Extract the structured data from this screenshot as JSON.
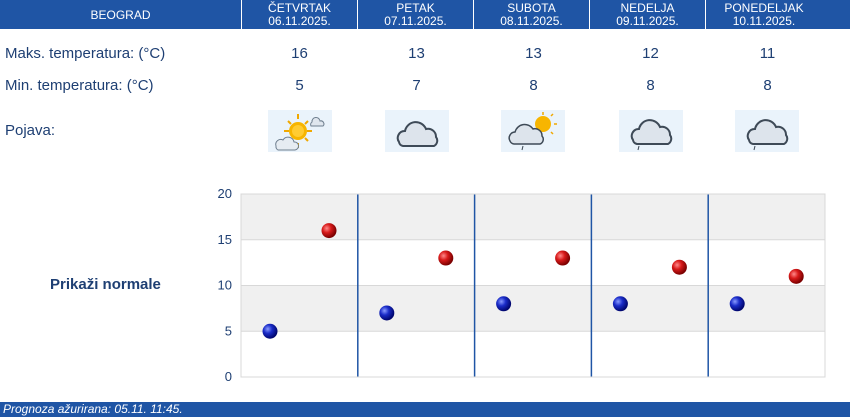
{
  "header": {
    "city": "BEOGRAD",
    "days": [
      {
        "name": "ČETVRTAK",
        "date": "06.11.2025."
      },
      {
        "name": "PETAK",
        "date": "07.11.2025."
      },
      {
        "name": "SUBOTA",
        "date": "08.11.2025."
      },
      {
        "name": "NEDELJA",
        "date": "09.11.2025."
      },
      {
        "name": "PONEDELJAK",
        "date": "10.11.2025."
      }
    ]
  },
  "rows": {
    "max_label": "Maks. temperatura: (°C)",
    "max_values": [
      "16",
      "13",
      "13",
      "12",
      "11"
    ],
    "min_label": "Min. temperatura: (°C)",
    "min_values": [
      "5",
      "7",
      "8",
      "8",
      "8"
    ],
    "weather_label": "Pojava:",
    "weather_icons": [
      "partly-sunny-icon",
      "cloud-icon",
      "cloud-sun-drizzle-icon",
      "cloud-drizzle-icon",
      "cloud-drizzle-icon"
    ]
  },
  "show_normals_label": "Prikaži normale",
  "chart_data": {
    "type": "scatter",
    "categories": [
      "ČETVRTAK",
      "PETAK",
      "SUBOTA",
      "NEDELJA",
      "PONEDELJAK"
    ],
    "series": [
      {
        "values": [
          16,
          13,
          13,
          12,
          11
        ],
        "color": "#c81414"
      },
      {
        "values": [
          5,
          7,
          8,
          8,
          8
        ],
        "color": "#1428b4"
      }
    ],
    "ylim": [
      0,
      20
    ],
    "yticks": [
      "0",
      "5",
      "10",
      "15",
      "20"
    ]
  },
  "footer": {
    "text": "Prognoza ažurirana:  05.11. 11:45."
  },
  "colors": {
    "brand": "#1f55a5",
    "text": "#1e3f73",
    "max_marker": "#c81414",
    "min_marker": "#1428b4"
  }
}
